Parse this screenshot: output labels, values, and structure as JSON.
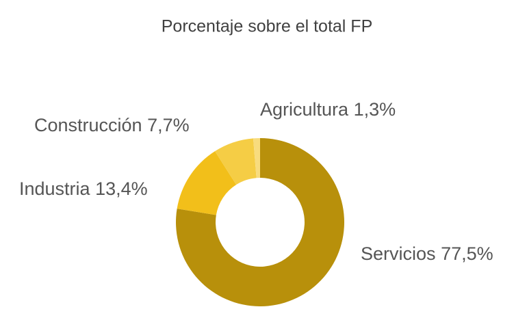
{
  "chart_data": {
    "type": "donut",
    "title": "Porcentaje sobre el total FP",
    "categories": [
      "Servicios",
      "Industria",
      "Construcción",
      "Agricultura"
    ],
    "values": [
      77.5,
      13.4,
      7.7,
      1.3
    ],
    "value_labels": [
      "77,5%",
      "13,4%",
      "7,7%",
      "1,3%"
    ],
    "colors": [
      "#b8900b",
      "#f2bf1a",
      "#f5cd45",
      "#f8dc7e"
    ]
  }
}
